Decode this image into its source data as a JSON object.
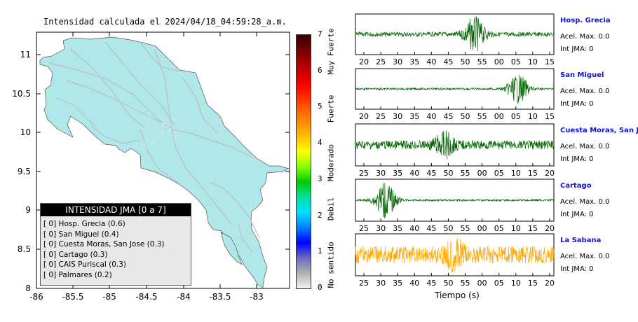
{
  "map": {
    "title": "Intensidad calculada el 2024/04/18_04:59:28_a.m.",
    "x_ticks": [
      "-86",
      "-85.5",
      "-85",
      "-84.5",
      "-84",
      "-83.5",
      "-83"
    ],
    "y_ticks": [
      "11",
      "10.5",
      "10",
      "9.5",
      "9",
      "8.5",
      "8"
    ],
    "land_color": "#b0e8ea",
    "road_color": "#bdbdbd",
    "legend": {
      "title": "INTENSIDAD JMA [0 a 7]",
      "items": [
        "[ 0]  Hosp. Grecia (0.6)",
        "[ 0]  San Miguel (0.4)",
        "[ 0]  Cuesta Moras, San Jose (0.3)",
        "[ 0]  Cartago (0.3)",
        "[ 0]  CAIS Puriscal (0.3)",
        "[ 0]  Palmares (0.2)"
      ]
    }
  },
  "colorbar": {
    "ticks": [
      "7",
      "6",
      "5",
      "4",
      "3",
      "2",
      "1",
      "0"
    ],
    "labels": [
      "Muy Fuerte",
      "Fuerte",
      "Moderado",
      "Debil",
      "No sentido"
    ]
  },
  "chart_data": [
    {
      "type": "line",
      "name": "Hosp. Grecia",
      "x_tick_labels": [
        "20",
        "25",
        "30",
        "35",
        "40",
        "45",
        "50",
        "55",
        "00",
        "05",
        "10",
        "15"
      ],
      "color": "#006400",
      "burst_center": 0.6,
      "burst_amp": 0.85,
      "noise_amp": 0.12
    },
    {
      "type": "line",
      "name": "San Miguel",
      "x_tick_labels": [
        "20",
        "25",
        "30",
        "35",
        "40",
        "45",
        "50",
        "55",
        "00",
        "05",
        "10",
        "15"
      ],
      "color": "#006400",
      "burst_center": 0.82,
      "burst_amp": 0.75,
      "noise_amp": 0.05
    },
    {
      "type": "line",
      "name": "Cuesta Moras, San Jose",
      "x_tick_labels": [
        "25",
        "30",
        "35",
        "40",
        "45",
        "50",
        "55",
        "00",
        "05",
        "10",
        "15",
        "20"
      ],
      "color": "#006400",
      "burst_center": 0.45,
      "burst_amp": 0.55,
      "noise_amp": 0.22
    },
    {
      "type": "line",
      "name": "Cartago",
      "x_tick_labels": [
        "25",
        "30",
        "35",
        "40",
        "45",
        "50",
        "55",
        "00",
        "05",
        "10",
        "15",
        "20"
      ],
      "color": "#006400",
      "burst_center": 0.15,
      "burst_amp": 0.9,
      "noise_amp": 0.05
    },
    {
      "type": "line",
      "name": "La Sabana",
      "x_tick_labels": [
        "25",
        "30",
        "35",
        "40",
        "45",
        "50",
        "55",
        "00",
        "05",
        "10",
        "15",
        "20"
      ],
      "color": "#ffa500",
      "burst_center": 0.5,
      "burst_amp": 0.5,
      "noise_amp": 0.45
    }
  ],
  "stations": [
    {
      "name": "Hosp. Grecia",
      "acel": "Acel. Max. 0.0",
      "int": "Int JMA: 0"
    },
    {
      "name": "San Miguel",
      "acel": "Acel. Max. 0.0",
      "int": "Int JMA: 0"
    },
    {
      "name": "Cuesta Moras, San Jose",
      "acel": "Acel. Max. 0.0",
      "int": "Int JMA: 0"
    },
    {
      "name": "Cartago",
      "acel": "Acel. Max. 0.0",
      "int": "Int JMA: 0"
    },
    {
      "name": "La Sabana",
      "acel": "Acel. Max. 0.0",
      "int": "Int JMA: 0"
    }
  ],
  "xaxis_label": "Tiempo (s)"
}
